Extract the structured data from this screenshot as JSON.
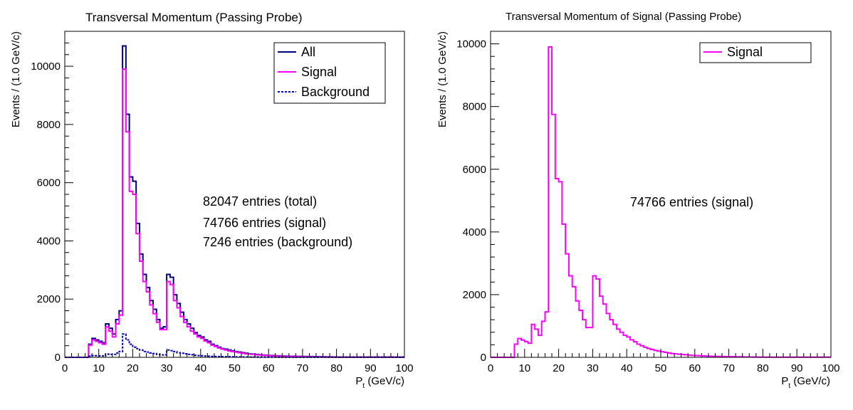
{
  "colors": {
    "all": "#000080",
    "signal": "#ff00ff",
    "background": "#0000cc",
    "axis": "#000000"
  },
  "chart_data": [
    {
      "type": "histogram",
      "title": "Transversal Momentum (Passing Probe)",
      "xlabel_main": "P",
      "xlabel_sub": "t",
      "xlabel_unit": " (GeV/c)",
      "ylabel": "Events / (1.0 GeV/c)",
      "xlim": [
        0,
        100
      ],
      "ylim": [
        0,
        11200
      ],
      "bin_width": 1,
      "x_ticks": [
        "0",
        "10",
        "20",
        "30",
        "40",
        "50",
        "60",
        "70",
        "80",
        "90",
        "100"
      ],
      "y_ticks": [
        0,
        2000,
        4000,
        6000,
        8000,
        10000
      ],
      "y_tick_labels": [
        "0",
        "2000",
        "4000",
        "6000",
        "8000",
        "10000"
      ],
      "legend_position": "top-right",
      "series": [
        {
          "name": "All",
          "style": "solid",
          "color_key": "all",
          "values": [
            0,
            0,
            0,
            0,
            0,
            0,
            0,
            450,
            650,
            600,
            550,
            500,
            1150,
            1000,
            800,
            1300,
            1600,
            10700,
            8350,
            6200,
            6050,
            4600,
            3550,
            2850,
            2400,
            1950,
            1650,
            1300,
            1000,
            1050,
            2850,
            2750,
            2150,
            1850,
            1550,
            1300,
            1150,
            1000,
            850,
            750,
            700,
            600,
            550,
            450,
            400,
            350,
            300,
            280,
            250,
            220,
            200,
            180,
            160,
            140,
            120,
            110,
            100,
            90,
            80,
            70,
            65,
            60,
            55,
            50,
            45,
            40,
            38,
            36,
            34,
            32,
            30,
            28,
            26,
            24,
            22,
            20,
            18,
            16,
            14,
            12,
            10,
            10,
            10,
            10,
            10,
            10,
            10,
            10,
            10,
            10,
            10,
            10,
            10,
            10,
            10,
            10,
            10,
            10,
            10,
            10
          ]
        },
        {
          "name": "Signal",
          "style": "solid",
          "color_key": "signal",
          "values": [
            0,
            0,
            0,
            0,
            0,
            0,
            0,
            420,
            600,
            550,
            500,
            450,
            1050,
            900,
            700,
            1150,
            1450,
            9900,
            7750,
            5700,
            5600,
            4250,
            3300,
            2600,
            2250,
            1800,
            1500,
            1200,
            950,
            950,
            2600,
            2500,
            1950,
            1700,
            1400,
            1200,
            1050,
            900,
            800,
            700,
            650,
            560,
            500,
            420,
            370,
            320,
            280,
            250,
            220,
            200,
            180,
            160,
            140,
            120,
            110,
            100,
            90,
            80,
            70,
            62,
            56,
            50,
            45,
            40,
            36,
            32,
            30,
            28,
            26,
            24,
            22,
            20,
            18,
            16,
            14,
            12,
            10,
            9,
            8,
            7,
            6,
            5,
            5,
            5,
            5,
            5,
            5,
            5,
            5,
            5,
            5,
            5,
            5,
            5,
            5,
            5,
            5,
            5,
            5,
            5
          ]
        },
        {
          "name": "Background",
          "style": "dashed",
          "color_key": "background",
          "values": [
            0,
            0,
            0,
            0,
            0,
            0,
            0,
            40,
            60,
            55,
            50,
            50,
            110,
            100,
            100,
            150,
            200,
            800,
            600,
            450,
            350,
            300,
            250,
            200,
            180,
            150,
            130,
            100,
            80,
            90,
            250,
            230,
            200,
            160,
            140,
            120,
            100,
            90,
            70,
            60,
            55,
            45,
            40,
            35,
            30,
            28,
            25,
            22,
            20,
            18,
            16,
            14,
            12,
            11,
            10,
            9,
            8,
            7,
            6,
            6,
            5,
            5,
            5,
            4,
            4,
            4,
            4,
            4,
            3,
            3,
            3,
            3,
            3,
            3,
            3,
            2,
            2,
            2,
            2,
            2,
            2,
            2,
            2,
            2,
            2,
            2,
            2,
            2,
            2,
            2,
            2,
            2,
            2,
            2,
            2,
            2,
            2,
            2,
            2,
            2
          ]
        }
      ],
      "annotations": [
        "82047 entries (total)",
        "74766 entries (signal)",
        "7246 entries (background)"
      ]
    },
    {
      "type": "histogram",
      "title": "Transversal Momentum of Signal (Passing Probe)",
      "xlabel_main": "P",
      "xlabel_sub": "t",
      "xlabel_unit": " (GeV/c)",
      "ylabel": "Events / (1.0 GeV/c)",
      "xlim": [
        0,
        100
      ],
      "ylim": [
        0,
        10400
      ],
      "bin_width": 1,
      "x_ticks": [
        "0",
        "10",
        "20",
        "30",
        "40",
        "50",
        "60",
        "70",
        "80",
        "90",
        "100"
      ],
      "y_ticks": [
        0,
        2000,
        4000,
        6000,
        8000,
        10000
      ],
      "y_tick_labels": [
        "0",
        "2000",
        "4000",
        "6000",
        "8000",
        "10000"
      ],
      "legend_position": "top-right",
      "series": [
        {
          "name": "Signal",
          "style": "solid",
          "color_key": "signal",
          "values": [
            0,
            0,
            0,
            0,
            0,
            0,
            0,
            420,
            600,
            550,
            500,
            450,
            1050,
            900,
            700,
            1150,
            1450,
            9900,
            7750,
            5700,
            5600,
            4250,
            3300,
            2600,
            2250,
            1800,
            1500,
            1200,
            950,
            950,
            2600,
            2500,
            1950,
            1700,
            1400,
            1200,
            1050,
            900,
            800,
            700,
            650,
            560,
            500,
            420,
            370,
            320,
            280,
            250,
            220,
            200,
            180,
            160,
            140,
            120,
            110,
            100,
            90,
            80,
            70,
            62,
            56,
            50,
            45,
            40,
            36,
            32,
            30,
            28,
            26,
            24,
            22,
            20,
            18,
            16,
            14,
            12,
            10,
            9,
            8,
            7,
            6,
            5,
            5,
            5,
            5,
            5,
            5,
            5,
            5,
            5,
            5,
            5,
            5,
            5,
            5,
            5,
            5,
            5,
            5,
            5
          ]
        }
      ],
      "annotations": [
        "74766 entries (signal)"
      ]
    }
  ]
}
